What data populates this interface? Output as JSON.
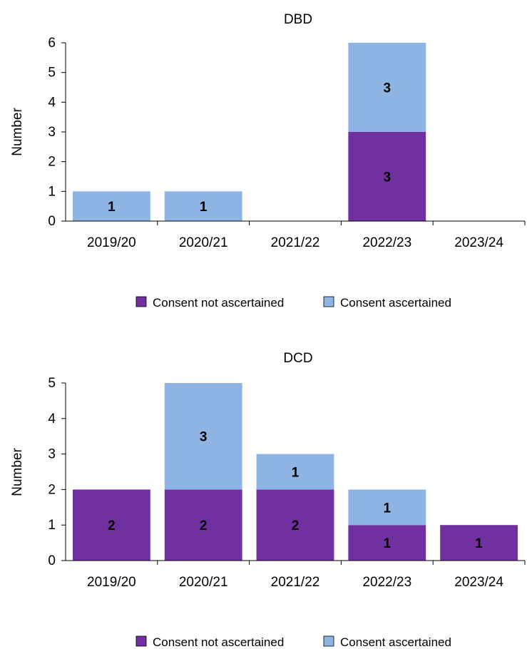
{
  "colors": {
    "consent_not_ascertained": "#7030A0",
    "consent_ascertained": "#8EB4E3",
    "axis": "#000000",
    "text": "#000000"
  },
  "chart_data": [
    {
      "type": "bar",
      "stacked": true,
      "title": "DBD",
      "xlabel": "",
      "ylabel": "Number",
      "ylim": [
        0,
        6
      ],
      "yticks": [
        0,
        1,
        2,
        3,
        4,
        5,
        6
      ],
      "categories": [
        "2019/20",
        "2020/21",
        "2021/22",
        "2022/23",
        "2023/24"
      ],
      "series": [
        {
          "name": "Consent not ascertained",
          "values": [
            0,
            0,
            0,
            3,
            0
          ]
        },
        {
          "name": "Consent ascertained",
          "values": [
            1,
            1,
            0,
            3,
            0
          ]
        }
      ],
      "legend_position": "bottom",
      "grid": false
    },
    {
      "type": "bar",
      "stacked": true,
      "title": "DCD",
      "xlabel": "",
      "ylabel": "Number",
      "ylim": [
        0,
        5
      ],
      "yticks": [
        0,
        1,
        2,
        3,
        4,
        5
      ],
      "categories": [
        "2019/20",
        "2020/21",
        "2021/22",
        "2022/23",
        "2023/24"
      ],
      "series": [
        {
          "name": "Consent not ascertained",
          "values": [
            2,
            2,
            2,
            1,
            1
          ]
        },
        {
          "name": "Consent ascertained",
          "values": [
            0,
            3,
            1,
            1,
            0
          ]
        }
      ],
      "legend_position": "bottom",
      "grid": false
    }
  ]
}
